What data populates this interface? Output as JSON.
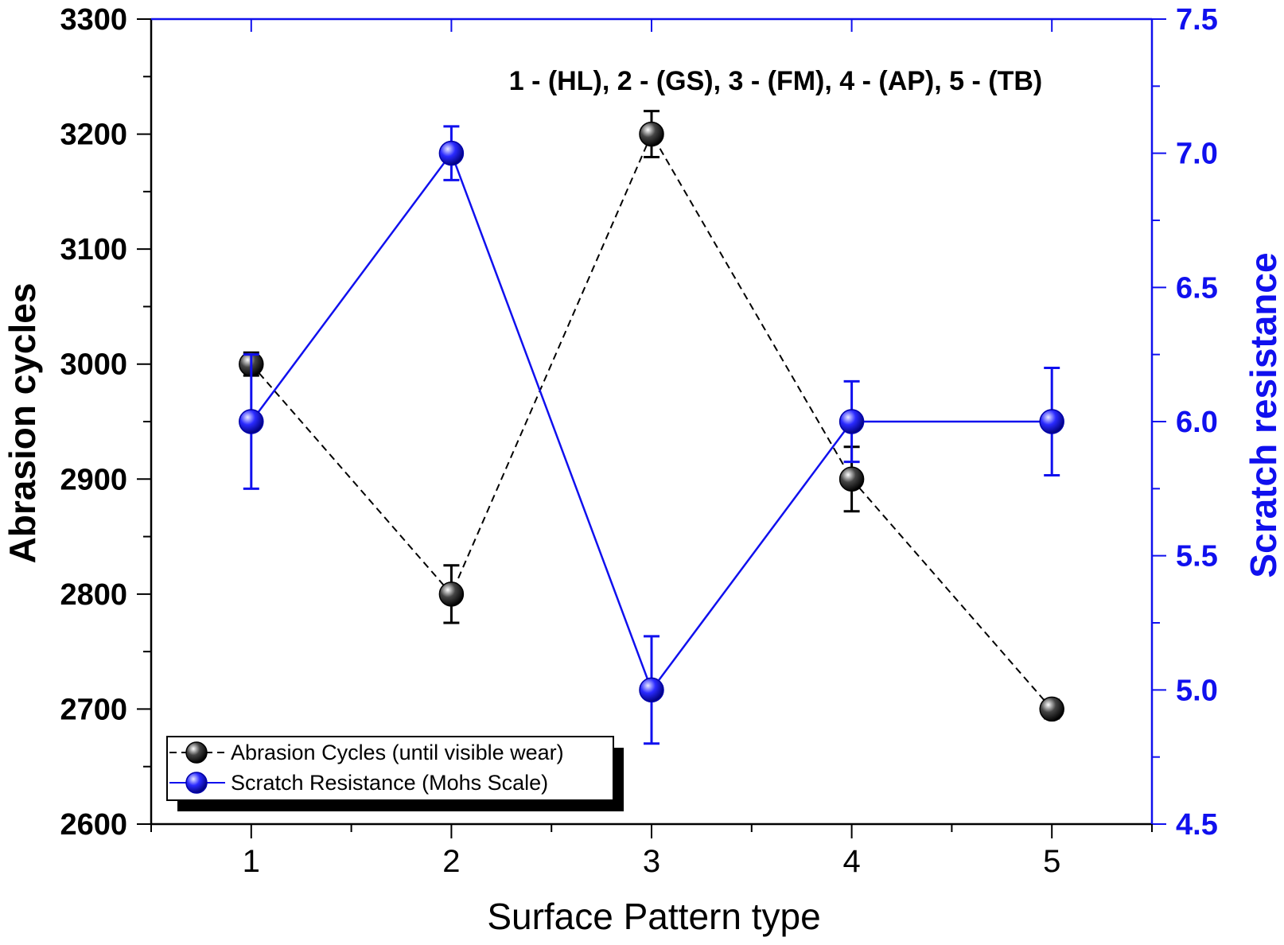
{
  "chart_data": {
    "type": "line",
    "title": "",
    "annotation": "1 - (HL),  2 - (GS), 3  - (FM), 4 - (AP), 5 - (TB)",
    "xlabel": "Surface Pattern type",
    "ylabel": "Abrasion cycles",
    "y2label": "Scratch resistance",
    "x": [
      1,
      2,
      3,
      4,
      5
    ],
    "x_ticks": [
      "1",
      "2",
      "3",
      "4",
      "5"
    ],
    "xlim": [
      0.5,
      5.5
    ],
    "ylim": [
      2600,
      3300
    ],
    "y_ticks": [
      "2600",
      "2700",
      "2800",
      "2900",
      "3000",
      "3100",
      "3200",
      "3300"
    ],
    "y2lim": [
      4.5,
      7.5
    ],
    "y2_ticks": [
      "4.5",
      "5.0",
      "5.5",
      "6.0",
      "6.5",
      "7.0",
      "7.5"
    ],
    "grid": false,
    "legend_position": "bottom-left",
    "series": [
      {
        "name": "Abrasion Cycles (until visible wear)",
        "axis": "left",
        "values": [
          3000,
          2800,
          3200,
          2900,
          2700
        ],
        "errors": [
          10,
          25,
          20,
          28,
          8
        ],
        "color": "#000000",
        "line_style": "dashed"
      },
      {
        "name": "Scratch Resistance (Mohs Scale)",
        "axis": "right",
        "values": [
          6.0,
          7.0,
          5.0,
          6.0,
          6.0
        ],
        "errors": [
          0.25,
          0.1,
          0.2,
          0.15,
          0.2
        ],
        "color": "#1010ee",
        "line_style": "solid"
      }
    ]
  }
}
